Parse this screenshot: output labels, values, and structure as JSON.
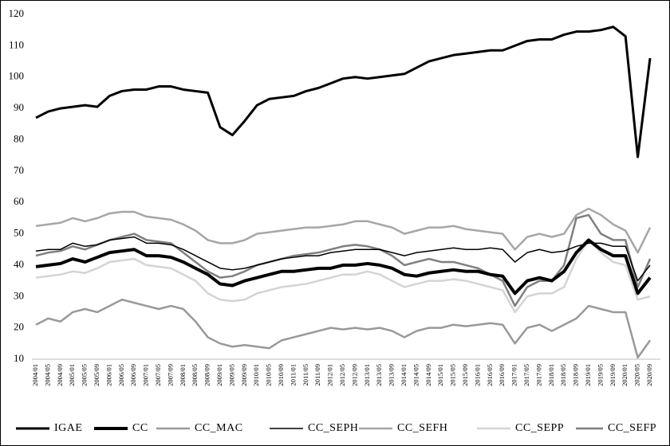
{
  "chart_data": {
    "type": "line",
    "categories": [
      "2004/01",
      "2004/05",
      "2004/09",
      "2005/01",
      "2005/05",
      "2005/09",
      "2006/01",
      "2006/05",
      "2006/09",
      "2007/01",
      "2007/05",
      "2007/09",
      "2008/01",
      "2008/05",
      "2008/09",
      "2009/01",
      "2009/05",
      "2009/09",
      "2010/01",
      "2010/05",
      "2010/09",
      "2011/01",
      "2011/05",
      "2011/09",
      "2012/01",
      "2012/05",
      "2012/09",
      "2013/01",
      "2013/05",
      "2013/09",
      "2014/01",
      "2014/05",
      "2014/09",
      "2015/01",
      "2015/05",
      "2015/09",
      "2016/01",
      "2016/05",
      "2016/09",
      "2017/01",
      "2017/05",
      "2017/09",
      "2018/01",
      "2018/05",
      "2018/09",
      "2019/01",
      "2019/05",
      "2019/09",
      "2020/01",
      "2020/05",
      "2020/09"
    ],
    "series": [
      {
        "name": "IGAE",
        "color": "#000000",
        "width": 3,
        "values": [
          87,
          89,
          90,
          90.5,
          91,
          90.5,
          94,
          95.5,
          96,
          96,
          97,
          97,
          96,
          95.5,
          95,
          84,
          81.5,
          86,
          91,
          93,
          93.5,
          94,
          95.5,
          96.5,
          98,
          99.5,
          100,
          99.5,
          100,
          100.5,
          101,
          103,
          105,
          106,
          107,
          107.5,
          108,
          108.5,
          108.5,
          110,
          111.5,
          112,
          112,
          113.5,
          114.5,
          114.5,
          115,
          116,
          113,
          74.5,
          106
        ]
      },
      {
        "name": "CC",
        "color": "#000000",
        "width": 4,
        "values": [
          39.5,
          40,
          40.5,
          42,
          41,
          42.5,
          44,
          44.5,
          45,
          43,
          43,
          42.5,
          41,
          39,
          37,
          34,
          33.5,
          35,
          36,
          37,
          38,
          38,
          38.5,
          39,
          39,
          40,
          40,
          40.5,
          40,
          39,
          37,
          36.5,
          37.5,
          38,
          38.5,
          38,
          38,
          37,
          36.5,
          31,
          35,
          36,
          35,
          38,
          44,
          48,
          45,
          43,
          43,
          31,
          36
        ]
      },
      {
        "name": "CC_MAC",
        "color": "#999999",
        "width": 2.5,
        "values": [
          21,
          23,
          22,
          25,
          26,
          25,
          27,
          29,
          28,
          27,
          26,
          27,
          26,
          22,
          17,
          15,
          14,
          14.5,
          14,
          13.5,
          16,
          17,
          18,
          19,
          20,
          19.5,
          20,
          19.5,
          20,
          19,
          17,
          19,
          20,
          20,
          21,
          20.5,
          21,
          21.5,
          21,
          15,
          20,
          21,
          19,
          21,
          23,
          27,
          26,
          25,
          25,
          10.5,
          16
        ]
      },
      {
        "name": "CC_SEPH",
        "color": "#000000",
        "width": 1.5,
        "values": [
          44.5,
          45,
          45,
          47,
          46,
          46.5,
          48,
          48.5,
          49,
          47,
          47,
          46.5,
          45,
          43,
          41,
          39,
          38.5,
          39,
          40,
          41,
          42,
          42.5,
          43,
          43,
          44,
          44.5,
          45,
          45,
          45,
          44,
          43,
          44,
          44.5,
          45,
          45.5,
          45,
          45,
          45.5,
          45,
          41,
          44,
          45,
          44,
          44.5,
          46,
          47,
          47,
          46,
          46,
          35,
          40
        ]
      },
      {
        "name": "CC_SEFH",
        "color": "#a6a6a6",
        "width": 2.5,
        "values": [
          52.5,
          53,
          53.5,
          55,
          54,
          55,
          56.5,
          57,
          57,
          55.5,
          55,
          54.5,
          53,
          51,
          48,
          47,
          47,
          48,
          50,
          50.5,
          51,
          51.5,
          52,
          52,
          52.5,
          53,
          54,
          54,
          53,
          52,
          50,
          51,
          52,
          52,
          52.5,
          51.5,
          51,
          50.5,
          50,
          45,
          49,
          50,
          49,
          50,
          56,
          58,
          56,
          53,
          51,
          44,
          52
        ]
      },
      {
        "name": "CC_SEPP",
        "color": "#d4d4d4",
        "width": 2.5,
        "values": [
          36,
          36.5,
          37,
          38,
          37.5,
          39,
          41,
          41.5,
          42,
          40,
          39.5,
          39,
          37,
          35,
          31,
          29,
          28.5,
          29,
          31,
          32,
          33,
          33.5,
          34,
          35,
          36,
          37,
          37,
          38,
          37,
          35,
          33,
          34,
          35,
          35,
          35.5,
          35,
          34,
          33,
          32,
          25,
          30,
          31,
          31,
          33,
          42,
          48,
          44,
          41,
          40,
          29,
          30
        ]
      },
      {
        "name": "CC_SEFP",
        "color": "#7f7f7f",
        "width": 2.5,
        "values": [
          43,
          44,
          44.5,
          46,
          45,
          46.5,
          48,
          49,
          50,
          48,
          47.5,
          47,
          44,
          41,
          38,
          36,
          36.5,
          38,
          40,
          41,
          42,
          43,
          43.5,
          44,
          45,
          46,
          46.5,
          46,
          45,
          43,
          40,
          41,
          42,
          41,
          41,
          40,
          39,
          37,
          35,
          27,
          33,
          35,
          35,
          40,
          55,
          56,
          50,
          48,
          48,
          33,
          42
        ]
      }
    ],
    "ylim": [
      10,
      120
    ],
    "yticks": [
      10,
      20,
      30,
      40,
      50,
      60,
      70,
      80,
      90,
      100,
      110,
      120
    ],
    "grid": false,
    "legend": "bottom"
  }
}
